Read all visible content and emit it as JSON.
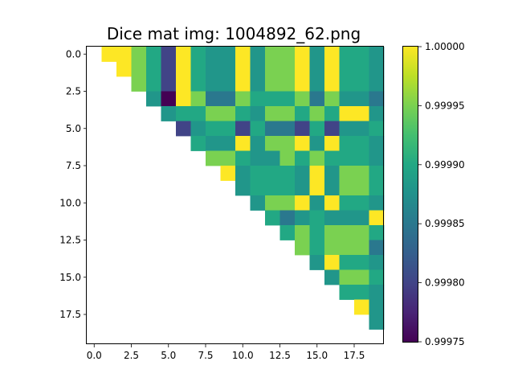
{
  "chart_data": {
    "type": "heatmap",
    "title": "Dice mat img: 1004892_62.png",
    "xlabel": "",
    "ylabel": "",
    "n": 20,
    "x_ticks": [
      0,
      2.5,
      5,
      7.5,
      10,
      12.5,
      15,
      17.5
    ],
    "x_tick_labels": [
      "0.0",
      "2.5",
      "5.0",
      "7.5",
      "10.0",
      "12.5",
      "15.0",
      "17.5"
    ],
    "y_ticks": [
      0,
      2.5,
      5,
      7.5,
      10,
      12.5,
      15,
      17.5
    ],
    "y_tick_labels": [
      "0.0",
      "2.5",
      "5.0",
      "7.5",
      "10.0",
      "12.5",
      "15.0",
      "17.5"
    ],
    "colormap": "viridis",
    "vmin": 0.99975,
    "vmax": 1.0,
    "colorbar_ticks": [
      1.0,
      0.99995,
      0.9999,
      0.99985,
      0.9998,
      0.99975
    ],
    "colorbar_tick_labels": [
      "1.00000",
      "0.99995",
      "0.99990",
      "0.99985",
      "0.99980",
      "0.99975"
    ],
    "grid": false,
    "matrix": [
      [
        null,
        1.0,
        1.0,
        0.99995,
        0.9999,
        0.9998,
        1.0,
        0.9999,
        0.99988,
        0.99988,
        1.0,
        0.99988,
        0.99995,
        0.99995,
        1.0,
        0.99988,
        1.0,
        0.9999,
        0.9999,
        0.99988
      ],
      [
        null,
        null,
        1.0,
        0.99995,
        0.9999,
        0.9998,
        1.0,
        0.9999,
        0.99988,
        0.99988,
        1.0,
        0.99988,
        0.99995,
        0.99995,
        1.0,
        0.99988,
        1.0,
        0.9999,
        0.9999,
        0.99988
      ],
      [
        null,
        null,
        null,
        0.99995,
        0.9999,
        0.9998,
        1.0,
        0.9999,
        0.99988,
        0.99988,
        1.0,
        0.99988,
        0.99995,
        0.99995,
        1.0,
        0.99988,
        1.0,
        0.9999,
        0.9999,
        0.99988
      ],
      [
        null,
        null,
        null,
        null,
        0.99988,
        0.99975,
        1.0,
        0.99995,
        0.99985,
        0.99985,
        0.99995,
        0.9999,
        0.9999,
        0.9999,
        0.99995,
        0.99985,
        0.99995,
        0.99988,
        0.99988,
        0.99985
      ],
      [
        null,
        null,
        null,
        null,
        null,
        0.99988,
        0.9999,
        0.9999,
        0.99995,
        0.99995,
        0.9999,
        0.99988,
        0.99995,
        0.99995,
        0.9999,
        0.99995,
        0.9999,
        1.0,
        1.0,
        0.99988
      ],
      [
        null,
        null,
        null,
        null,
        null,
        null,
        0.9998,
        0.99988,
        0.9999,
        0.9999,
        0.9998,
        0.9999,
        0.99985,
        0.99985,
        0.9998,
        0.9999,
        0.9998,
        0.99988,
        0.99988,
        0.9999
      ],
      [
        null,
        null,
        null,
        null,
        null,
        null,
        null,
        0.9999,
        0.99988,
        0.99988,
        1.0,
        0.99988,
        0.99995,
        0.99995,
        1.0,
        0.99988,
        1.0,
        0.9999,
        0.9999,
        0.99988
      ],
      [
        null,
        null,
        null,
        null,
        null,
        null,
        null,
        null,
        0.99995,
        0.99995,
        0.9999,
        0.99988,
        0.99988,
        0.99995,
        0.9999,
        0.99995,
        0.9999,
        0.9999,
        0.9999,
        0.99988
      ],
      [
        null,
        null,
        null,
        null,
        null,
        null,
        null,
        null,
        null,
        1.0,
        0.99988,
        0.9999,
        0.9999,
        0.9999,
        0.99988,
        1.0,
        0.99988,
        0.99995,
        0.99995,
        0.9999
      ],
      [
        null,
        null,
        null,
        null,
        null,
        null,
        null,
        null,
        null,
        null,
        0.99988,
        0.9999,
        0.9999,
        0.9999,
        0.99988,
        1.0,
        0.99988,
        0.99995,
        0.99995,
        0.9999
      ],
      [
        null,
        null,
        null,
        null,
        null,
        null,
        null,
        null,
        null,
        null,
        null,
        0.99988,
        0.99995,
        0.99995,
        1.0,
        0.99988,
        1.0,
        0.9999,
        0.9999,
        0.99988
      ],
      [
        null,
        null,
        null,
        null,
        null,
        null,
        null,
        null,
        null,
        null,
        null,
        null,
        0.9999,
        0.99985,
        0.99988,
        0.9999,
        0.99988,
        0.99988,
        0.99988,
        1.0
      ],
      [
        null,
        null,
        null,
        null,
        null,
        null,
        null,
        null,
        null,
        null,
        null,
        null,
        null,
        0.9999,
        0.99995,
        0.9999,
        0.99995,
        0.99995,
        0.99995,
        0.9999
      ],
      [
        null,
        null,
        null,
        null,
        null,
        null,
        null,
        null,
        null,
        null,
        null,
        null,
        null,
        null,
        0.99995,
        0.9999,
        0.99995,
        0.99995,
        0.99995,
        0.99985
      ],
      [
        null,
        null,
        null,
        null,
        null,
        null,
        null,
        null,
        null,
        null,
        null,
        null,
        null,
        null,
        null,
        0.99988,
        1.0,
        0.9999,
        0.9999,
        0.99988
      ],
      [
        null,
        null,
        null,
        null,
        null,
        null,
        null,
        null,
        null,
        null,
        null,
        null,
        null,
        null,
        null,
        null,
        0.99988,
        0.99995,
        0.99995,
        0.9999
      ],
      [
        null,
        null,
        null,
        null,
        null,
        null,
        null,
        null,
        null,
        null,
        null,
        null,
        null,
        null,
        null,
        null,
        null,
        0.9999,
        0.9999,
        0.99988
      ],
      [
        null,
        null,
        null,
        null,
        null,
        null,
        null,
        null,
        null,
        null,
        null,
        null,
        null,
        null,
        null,
        null,
        null,
        null,
        1.0,
        0.99988
      ],
      [
        null,
        null,
        null,
        null,
        null,
        null,
        null,
        null,
        null,
        null,
        null,
        null,
        null,
        null,
        null,
        null,
        null,
        null,
        null,
        0.99988
      ],
      [
        null,
        null,
        null,
        null,
        null,
        null,
        null,
        null,
        null,
        null,
        null,
        null,
        null,
        null,
        null,
        null,
        null,
        null,
        null,
        null
      ]
    ]
  }
}
